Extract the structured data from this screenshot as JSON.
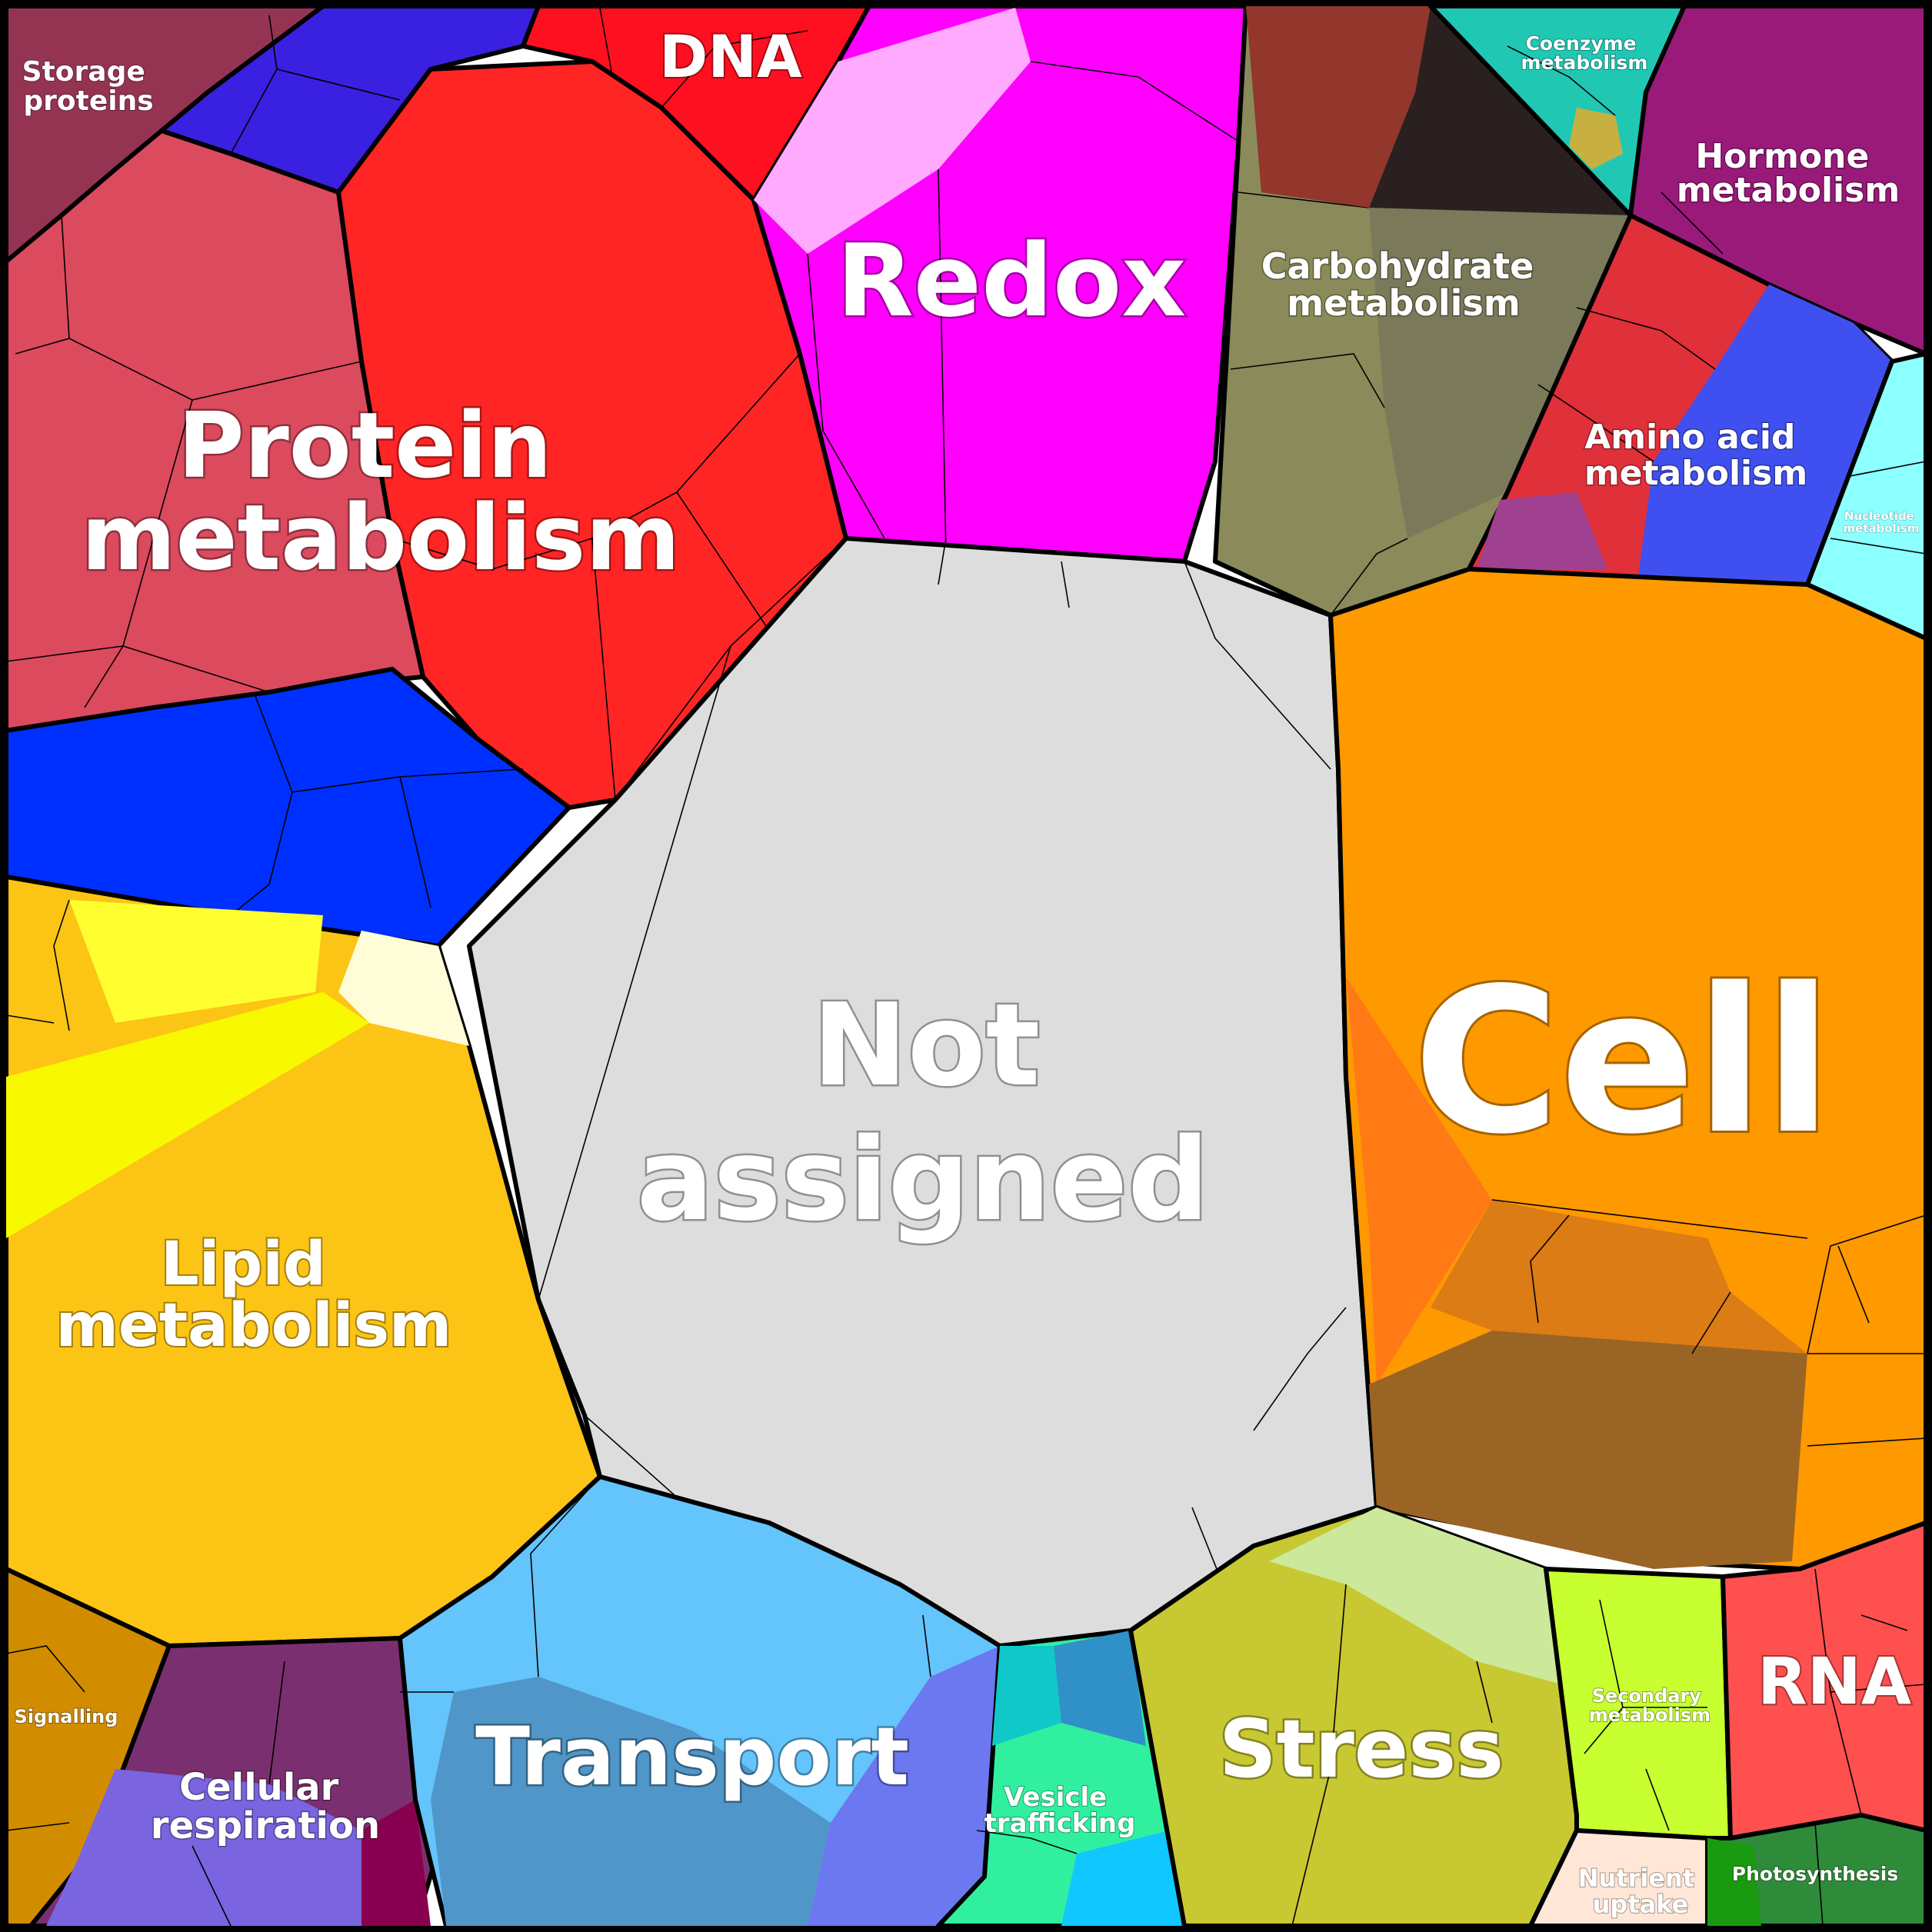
{
  "diagram": {
    "categories": [
      {
        "id": "not-assigned",
        "label": [
          "Not",
          "assigned"
        ],
        "color": "#dddddd"
      },
      {
        "id": "cell",
        "label": [
          "Cell"
        ],
        "color": "#ff9900"
      },
      {
        "id": "protein-metabolism",
        "label": [
          "Protein",
          "metabolism"
        ],
        "color": "#ff2525"
      },
      {
        "id": "redox",
        "label": [
          "Redox"
        ],
        "color": "#ff00ff"
      },
      {
        "id": "lipid-metabolism",
        "label": [
          "Lipid",
          "metabolism"
        ],
        "color": "#fcc414"
      },
      {
        "id": "transport",
        "label": [
          "Transport"
        ],
        "color": "#64c4fc"
      },
      {
        "id": "stress",
        "label": [
          "Stress"
        ],
        "color": "#c8c832"
      },
      {
        "id": "rna",
        "label": [
          "RNA"
        ],
        "color": "#ff5050"
      },
      {
        "id": "dna",
        "label": [
          "DNA"
        ],
        "color": "#ff1020"
      },
      {
        "id": "carbohydrate-metabolism",
        "label": [
          "Carbohydrate",
          "metabolism"
        ],
        "color": "#8a8a5a"
      },
      {
        "id": "amino-acid-metabolism",
        "label": [
          "Amino acid",
          "metabolism"
        ],
        "color": "#e0303a"
      },
      {
        "id": "hormone-metabolism",
        "label": [
          "Hormone",
          "metabolism"
        ],
        "color": "#9a1a7a"
      },
      {
        "id": "storage-proteins",
        "label": [
          "Storage",
          "proteins"
        ],
        "color": "#953452"
      },
      {
        "id": "coenzyme-metabolism",
        "label": [
          "Coenzyme",
          "metabolism"
        ],
        "color": "#20c8b4"
      },
      {
        "id": "nucleotide-metabolism",
        "label": [
          "Nucleotide",
          "metabolism"
        ],
        "color": "#8cffff"
      },
      {
        "id": "signalling",
        "label": [
          "Signalling"
        ],
        "color": "#d28c00"
      },
      {
        "id": "cellular-respiration",
        "label": [
          "Cellular",
          "respiration"
        ],
        "color": "#7a3070"
      },
      {
        "id": "vesicle-trafficking",
        "label": [
          "Vesicle",
          "trafficking"
        ],
        "color": "#30f0a0"
      },
      {
        "id": "secondary-metabolism",
        "label": [
          "Secondary",
          "metabolism"
        ],
        "color": "#c8ff30"
      },
      {
        "id": "nutrient-uptake",
        "label": [
          "Nutrient",
          "uptake"
        ],
        "color": "#ffe6d6"
      },
      {
        "id": "photosynthesis",
        "label": [
          "Photosynthesis"
        ],
        "color": "#2e8b3a"
      }
    ]
  }
}
